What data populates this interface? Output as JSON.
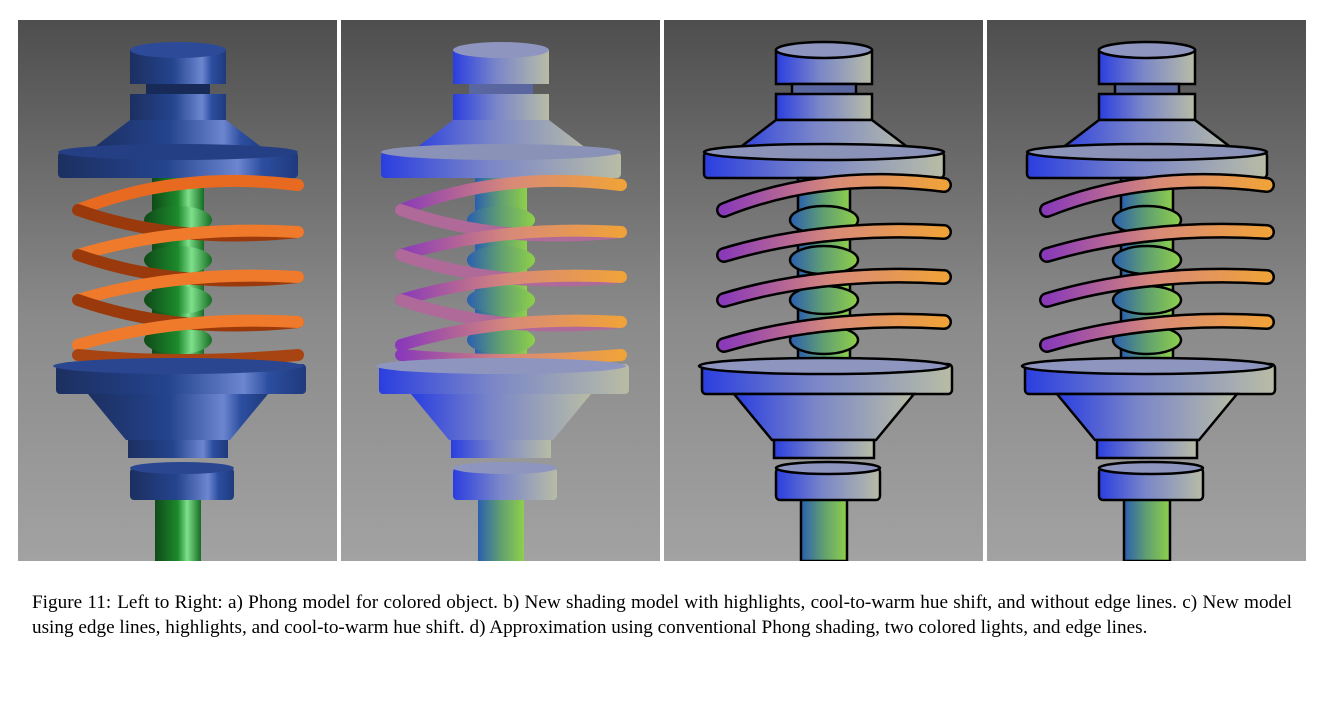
{
  "figure": {
    "panels": [
      {
        "id": "a",
        "description": "Phong model for colored object"
      },
      {
        "id": "b",
        "description": "New shading model with highlights, cool-to-warm hue shift, and without edge lines"
      },
      {
        "id": "c",
        "description": "New model using edge lines, highlights, and cool-to-warm hue shift"
      },
      {
        "id": "d",
        "description": "Approximation using conventional Phong shading, two colored lights, and edge lines"
      }
    ],
    "caption": {
      "label": "Figure 11:",
      "text": "Left to Right: a) Phong model for colored object. b) New shading model with highlights, cool-to-warm hue shift, and without edge lines. c) New model using edge lines, highlights, and cool-to-warm hue shift. d) Approximation using conventional Phong shading, two colored lights, and edge lines."
    }
  }
}
